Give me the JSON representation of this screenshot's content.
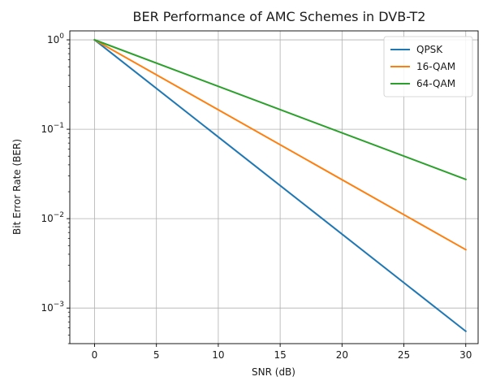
{
  "chart_data": {
    "type": "line",
    "title": "BER Performance of AMC Schemes in DVB-T2",
    "xlabel": "SNR (dB)",
    "ylabel": "Bit Error Rate (BER)",
    "x_scale": "linear",
    "y_scale": "log",
    "xlim": [
      -2,
      31
    ],
    "ylim": [
      0.0004,
      1.26
    ],
    "x_ticks": [
      0,
      5,
      10,
      15,
      20,
      25,
      30
    ],
    "y_ticks": [
      0.001,
      0.01,
      0.1,
      1
    ],
    "y_tick_labels": [
      {
        "base": "10",
        "exp": "−3"
      },
      {
        "base": "10",
        "exp": "−2"
      },
      {
        "base": "10",
        "exp": "−1"
      },
      {
        "base": "10",
        "exp": "0"
      }
    ],
    "grid": true,
    "legend_position": "top-right",
    "series": [
      {
        "name": "QPSK",
        "color": "#1f77b4",
        "x": [
          0,
          30
        ],
        "y": [
          1,
          0.00055
        ]
      },
      {
        "name": "16-QAM",
        "color": "#ff7f0e",
        "x": [
          0,
          30
        ],
        "y": [
          1,
          0.0045
        ]
      },
      {
        "name": "64-QAM",
        "color": "#2ca02c",
        "x": [
          0,
          30
        ],
        "y": [
          1,
          0.0275
        ]
      }
    ]
  }
}
